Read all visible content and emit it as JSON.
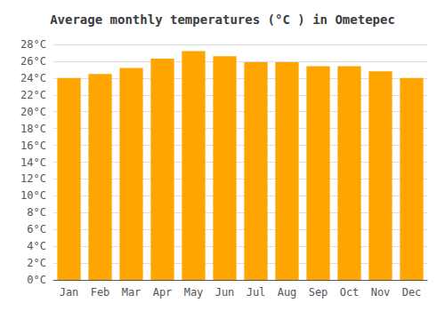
{
  "chart_data": {
    "type": "bar",
    "title": "Average monthly temperatures (°C ) in Ometepec",
    "categories": [
      "Jan",
      "Feb",
      "Mar",
      "Apr",
      "May",
      "Jun",
      "Jul",
      "Aug",
      "Sep",
      "Oct",
      "Nov",
      "Dec"
    ],
    "values": [
      24.0,
      24.5,
      25.2,
      26.3,
      27.2,
      26.6,
      25.9,
      25.9,
      25.4,
      25.4,
      24.8,
      24.0
    ],
    "color": "#FFA500",
    "ylim": [
      0,
      28
    ],
    "yticks": [
      {
        "value": 0,
        "label": "0°C"
      },
      {
        "value": 2,
        "label": "2°C"
      },
      {
        "value": 4,
        "label": "4°C"
      },
      {
        "value": 6,
        "label": "6°C"
      },
      {
        "value": 8,
        "label": "8°C"
      },
      {
        "value": 10,
        "label": "10°C"
      },
      {
        "value": 12,
        "label": "12°C"
      },
      {
        "value": 14,
        "label": "14°C"
      },
      {
        "value": 16,
        "label": "16°C"
      },
      {
        "value": 18,
        "label": "18°C"
      },
      {
        "value": 20,
        "label": "20°C"
      },
      {
        "value": 22,
        "label": "22°C"
      },
      {
        "value": 24,
        "label": "24°C"
      },
      {
        "value": 26,
        "label": "26°C"
      },
      {
        "value": 28,
        "label": "28°C"
      }
    ],
    "grid": true
  }
}
